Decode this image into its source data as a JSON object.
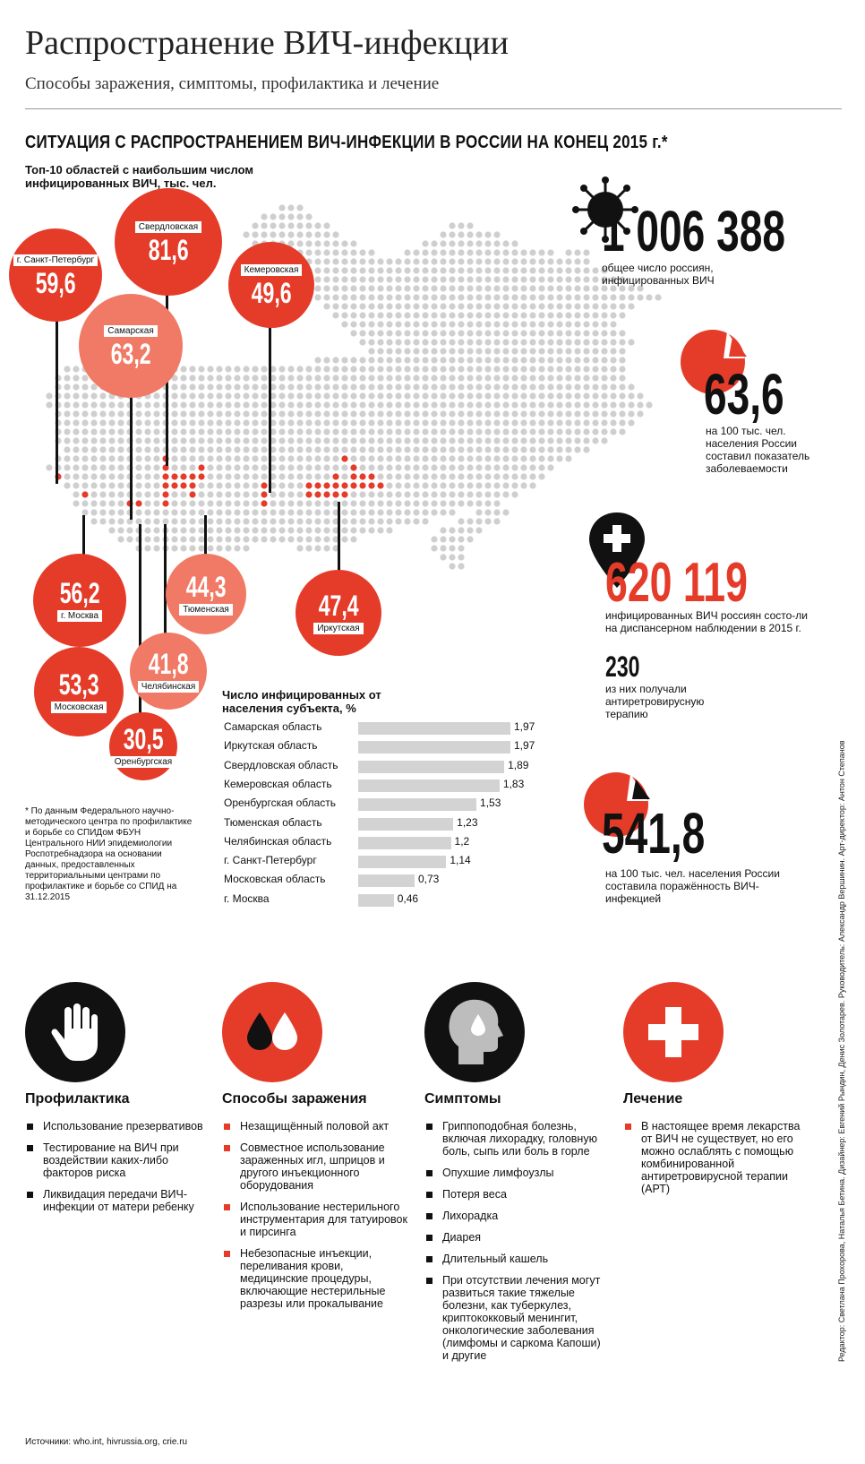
{
  "header": {
    "title": "Распространение ВИЧ-инфекции",
    "subtitle": "Способы заражения, симптомы, профилактика и лечение"
  },
  "situation": {
    "heading": "СИТУАЦИЯ С РАСПРОСТРАНЕНИЕМ ВИЧ-ИНФЕКЦИИ В РОССИИ НА КОНЕЦ 2015 г.*",
    "top10_caption": "Топ-10 областей с наибольшим числом инфицированных ВИЧ, тыс. чел."
  },
  "regions": [
    {
      "name": "г. Санкт-Петербург",
      "value": "59,6"
    },
    {
      "name": "Свердловская",
      "value": "81,6"
    },
    {
      "name": "Кемеровская",
      "value": "49,6"
    },
    {
      "name": "Самарская",
      "value": "63,2"
    },
    {
      "name": "г. Москва",
      "value": "56,2"
    },
    {
      "name": "Московская",
      "value": "53,3"
    },
    {
      "name": "Тюменская",
      "value": "44,3"
    },
    {
      "name": "Челябинская",
      "value": "41,8"
    },
    {
      "name": "Оренбургская",
      "value": "30,5"
    },
    {
      "name": "Иркутская",
      "value": "47,4"
    }
  ],
  "stats": {
    "total_value": "1 006 388",
    "total_text": "общее число россиян, инфицированных ВИЧ",
    "incidence_value": "63,6",
    "incidence_text": "на 100 тыс. чел. населения России составил показатель заболеваемости",
    "registered_value": "620 119",
    "registered_text": "инфицированных ВИЧ россиян состо-ли на диспансерном наблюдении в 2015 г.",
    "art_value": "230",
    "art_text": "из них получали антиретровирусную терапию",
    "prevalence_value": "541,8",
    "prevalence_text": "на 100 тыс. чел. населения России составила поражённость ВИЧ-инфекцией"
  },
  "chart_data": {
    "type": "bar",
    "title": "Число инфицированных от населения субъекта, %",
    "categories": [
      "Самарская область",
      "Иркутская область",
      "Свердловская область",
      "Кемеровская область",
      "Оренбургская область",
      "Тюменская область",
      "Челябинская область",
      "г. Санкт-Петербург",
      "Московская область",
      "г. Москва"
    ],
    "values": [
      1.97,
      1.97,
      1.89,
      1.83,
      1.53,
      1.23,
      1.2,
      1.14,
      0.73,
      0.46
    ],
    "value_labels": [
      "1,97",
      "1,97",
      "1,89",
      "1,83",
      "1,53",
      "1,23",
      "1,2",
      "1,14",
      "0,73",
      "0,46"
    ],
    "orientation": "horizontal"
  },
  "footnote": "* По данным Федерального научно-методического центра по профилактике и борьбе со СПИДом ФБУН Центрального НИИ эпидемиологии Роспотребнадзора на основании данных, предоставленных территориальными центрами по профилактике и борьбе со СПИД на 31.12.2015",
  "categories": [
    {
      "title": "Профилактика",
      "icon": "hand-stop-icon",
      "items": [
        "Использование презервативов",
        "Тестирование на ВИЧ при воздействии каких-либо факторов риска",
        "Ликвидация передачи ВИЧ-инфекции от матери ребенку"
      ]
    },
    {
      "title": "Способы заражения",
      "icon": "blood-drops-icon",
      "items": [
        "Незащищённый половой акт",
        "Совместное использование зараженных игл, шприцов и другого инъекционного оборудования",
        "Использование нестерильного инструментария для татуировок и пирсинга",
        "Небезопасные инъекции, переливания крови, медицинские процедуры, включающие нестерильные разрезы или прокалывание"
      ]
    },
    {
      "title": "Симптомы",
      "icon": "head-sweat-icon",
      "items": [
        "Гриппоподобная болезнь, включая лихорадку, головную боль, сыпь или боль в горле",
        "Опухшие лимфоузлы",
        "Потеря веса",
        "Лихорадка",
        "Диарея",
        "Длительный кашель",
        "При отсутствии лечения могут развиться такие тяжелые болезни, как туберкулез, криптококковый менингит, онкологические заболевания (лимфомы и саркома Капоши) и другие"
      ]
    },
    {
      "title": "Лечение",
      "icon": "medical-cross-icon",
      "items": [
        "В настоящее время лекарства от ВИЧ не существует, но его можно ослаблять с помощью комбинированной антиретровирусной терапии (АРТ)"
      ]
    }
  ],
  "sources": "Источники: who.int, hivrussia.org, crie.ru",
  "credits": "Редактор: Светлана Прохорова, Наталья Бетина. Дизайнер: Евгений Рындин, Денис Золотарев. Руководитель: Александр Вершинин. Арт-директор: Антон Степанов",
  "colors": {
    "accent": "#e53c2a",
    "accent_light": "#f07a66",
    "dot_gray": "#cfcfcf",
    "bar_gray": "#d3d3d3"
  }
}
